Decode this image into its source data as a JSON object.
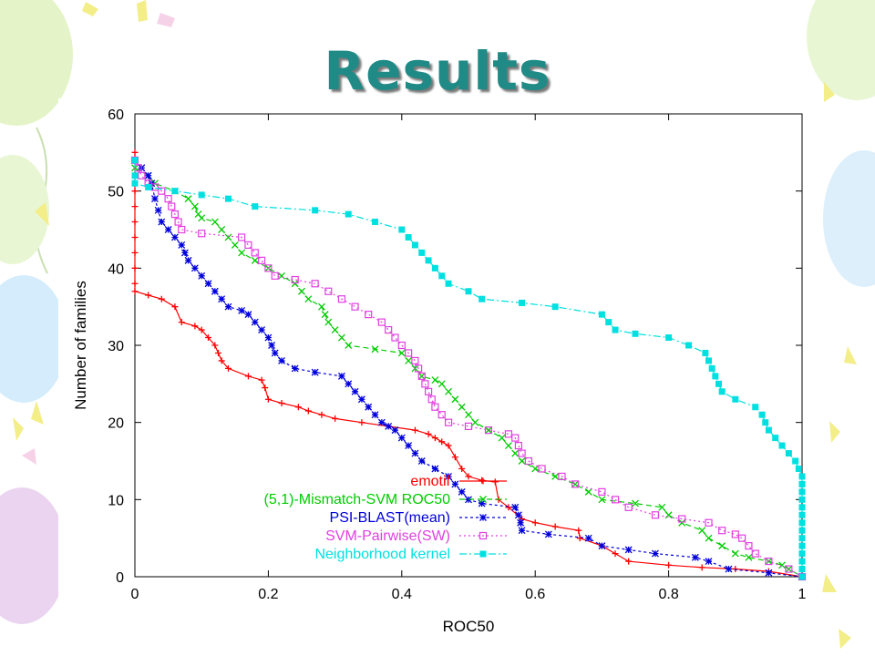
{
  "slide": {
    "title": "Results"
  },
  "colors": {
    "title": "#1f8a86",
    "balloon_green": "#dff2c0",
    "balloon_blue": "#d4ecfb",
    "balloon_purple": "#ead4f0",
    "confetti": "#f3ee88"
  },
  "chart_data": {
    "type": "line",
    "title": "",
    "xlabel": "ROC50",
    "ylabel": "Number of families",
    "xlim": [
      0,
      1
    ],
    "ylim": [
      0,
      60
    ],
    "xticks": [
      0,
      0.2,
      0.4,
      0.6,
      0.8,
      1
    ],
    "xtick_labels": [
      "0",
      "0.2",
      "0.4",
      "0.6",
      "0.8",
      "1"
    ],
    "yticks": [
      0,
      10,
      20,
      30,
      40,
      50,
      60
    ],
    "ytick_labels": [
      "0",
      "10",
      "20",
      "30",
      "40",
      "50",
      "60"
    ],
    "grid": false,
    "legend_position": "bottom-center",
    "series": [
      {
        "name": "emotif",
        "color": "#ff0000",
        "marker": "plus",
        "dash": "",
        "points": [
          [
            0,
            55
          ],
          [
            0,
            52
          ],
          [
            0,
            50
          ],
          [
            0,
            48
          ],
          [
            0,
            46
          ],
          [
            0,
            44
          ],
          [
            0,
            42
          ],
          [
            0,
            40
          ],
          [
            0,
            38
          ],
          [
            0,
            37
          ],
          [
            0.02,
            36.5
          ],
          [
            0.04,
            36
          ],
          [
            0.06,
            35
          ],
          [
            0.07,
            33
          ],
          [
            0.09,
            32.5
          ],
          [
            0.1,
            32
          ],
          [
            0.11,
            31
          ],
          [
            0.12,
            30
          ],
          [
            0.125,
            29
          ],
          [
            0.13,
            28
          ],
          [
            0.14,
            27
          ],
          [
            0.17,
            26
          ],
          [
            0.19,
            25.5
          ],
          [
            0.195,
            24.5
          ],
          [
            0.2,
            23
          ],
          [
            0.22,
            22.5
          ],
          [
            0.245,
            22
          ],
          [
            0.26,
            21.5
          ],
          [
            0.28,
            21
          ],
          [
            0.3,
            20.5
          ],
          [
            0.34,
            20
          ],
          [
            0.38,
            19.5
          ],
          [
            0.42,
            19
          ],
          [
            0.44,
            18.5
          ],
          [
            0.45,
            18
          ],
          [
            0.46,
            17.5
          ],
          [
            0.47,
            17
          ],
          [
            0.48,
            15.5
          ],
          [
            0.49,
            14
          ],
          [
            0.5,
            13
          ],
          [
            0.52,
            12.5
          ],
          [
            0.54,
            12.3
          ],
          [
            0.545,
            10
          ],
          [
            0.56,
            9
          ],
          [
            0.58,
            7.5
          ],
          [
            0.6,
            7
          ],
          [
            0.63,
            6.5
          ],
          [
            0.665,
            6
          ],
          [
            0.667,
            5
          ],
          [
            0.7,
            4
          ],
          [
            0.72,
            3
          ],
          [
            0.74,
            2
          ],
          [
            0.8,
            1.5
          ],
          [
            0.85,
            1.2
          ],
          [
            0.9,
            1
          ],
          [
            0.95,
            0.7
          ],
          [
            1,
            0
          ]
        ]
      },
      {
        "name": "(5,1)-Mismatch-SVM ROC50",
        "color": "#00cc00",
        "marker": "x",
        "dash": "6,4",
        "points": [
          [
            0,
            53
          ],
          [
            0.02,
            52
          ],
          [
            0.03,
            51
          ],
          [
            0.06,
            50
          ],
          [
            0.08,
            49
          ],
          [
            0.09,
            48
          ],
          [
            0.095,
            47
          ],
          [
            0.1,
            46.5
          ],
          [
            0.12,
            46
          ],
          [
            0.13,
            45
          ],
          [
            0.14,
            44
          ],
          [
            0.15,
            43
          ],
          [
            0.16,
            42
          ],
          [
            0.18,
            41
          ],
          [
            0.2,
            40
          ],
          [
            0.22,
            39
          ],
          [
            0.24,
            38
          ],
          [
            0.25,
            37
          ],
          [
            0.26,
            36
          ],
          [
            0.28,
            35
          ],
          [
            0.285,
            34
          ],
          [
            0.29,
            33
          ],
          [
            0.3,
            32
          ],
          [
            0.31,
            31
          ],
          [
            0.32,
            30
          ],
          [
            0.36,
            29.5
          ],
          [
            0.4,
            29
          ],
          [
            0.41,
            28
          ],
          [
            0.42,
            27
          ],
          [
            0.43,
            26
          ],
          [
            0.45,
            25.5
          ],
          [
            0.46,
            25
          ],
          [
            0.47,
            24
          ],
          [
            0.48,
            23
          ],
          [
            0.49,
            22
          ],
          [
            0.5,
            21
          ],
          [
            0.51,
            20
          ],
          [
            0.53,
            19
          ],
          [
            0.55,
            18
          ],
          [
            0.56,
            17
          ],
          [
            0.57,
            16
          ],
          [
            0.58,
            15
          ],
          [
            0.6,
            14
          ],
          [
            0.63,
            13
          ],
          [
            0.66,
            12
          ],
          [
            0.68,
            11
          ],
          [
            0.7,
            10
          ],
          [
            0.75,
            9.5
          ],
          [
            0.79,
            9
          ],
          [
            0.8,
            8
          ],
          [
            0.82,
            7
          ],
          [
            0.85,
            6
          ],
          [
            0.86,
            5
          ],
          [
            0.88,
            4
          ],
          [
            0.9,
            3
          ],
          [
            0.92,
            2.5
          ],
          [
            0.95,
            2
          ],
          [
            0.97,
            1.5
          ],
          [
            0.98,
            1
          ],
          [
            1,
            0
          ]
        ]
      },
      {
        "name": "PSI-BLAST(mean)",
        "color": "#0000dd",
        "marker": "star",
        "dash": "3,3",
        "points": [
          [
            0,
            54
          ],
          [
            0.01,
            53
          ],
          [
            0.02,
            52
          ],
          [
            0.025,
            51
          ],
          [
            0.03,
            49
          ],
          [
            0.035,
            47.5
          ],
          [
            0.04,
            46
          ],
          [
            0.05,
            45
          ],
          [
            0.06,
            44
          ],
          [
            0.07,
            43
          ],
          [
            0.075,
            42
          ],
          [
            0.08,
            41
          ],
          [
            0.09,
            40
          ],
          [
            0.1,
            39
          ],
          [
            0.11,
            38
          ],
          [
            0.12,
            37
          ],
          [
            0.13,
            36
          ],
          [
            0.14,
            35
          ],
          [
            0.16,
            34.5
          ],
          [
            0.17,
            34
          ],
          [
            0.18,
            33
          ],
          [
            0.19,
            32
          ],
          [
            0.2,
            31
          ],
          [
            0.205,
            30
          ],
          [
            0.21,
            29
          ],
          [
            0.22,
            28
          ],
          [
            0.24,
            27
          ],
          [
            0.27,
            26.5
          ],
          [
            0.31,
            26
          ],
          [
            0.32,
            25
          ],
          [
            0.33,
            24
          ],
          [
            0.34,
            23
          ],
          [
            0.35,
            22
          ],
          [
            0.36,
            21
          ],
          [
            0.37,
            20
          ],
          [
            0.38,
            19.5
          ],
          [
            0.39,
            19
          ],
          [
            0.4,
            18
          ],
          [
            0.41,
            17
          ],
          [
            0.42,
            16
          ],
          [
            0.43,
            15
          ],
          [
            0.45,
            14
          ],
          [
            0.47,
            13
          ],
          [
            0.48,
            12
          ],
          [
            0.49,
            11
          ],
          [
            0.5,
            10
          ],
          [
            0.52,
            9.5
          ],
          [
            0.57,
            9
          ],
          [
            0.575,
            8
          ],
          [
            0.578,
            7
          ],
          [
            0.58,
            6
          ],
          [
            0.62,
            5.5
          ],
          [
            0.68,
            5
          ],
          [
            0.7,
            4
          ],
          [
            0.74,
            3.5
          ],
          [
            0.78,
            3
          ],
          [
            0.84,
            2.5
          ],
          [
            0.86,
            2
          ],
          [
            0.89,
            1
          ],
          [
            0.95,
            0.5
          ],
          [
            1,
            0
          ]
        ]
      },
      {
        "name": "SVM-Pairwise(SW)",
        "color": "#e040e0",
        "marker": "square-open",
        "dash": "2,3",
        "points": [
          [
            0,
            54
          ],
          [
            0.005,
            53
          ],
          [
            0.01,
            52
          ],
          [
            0.02,
            51
          ],
          [
            0.03,
            50.5
          ],
          [
            0.04,
            50
          ],
          [
            0.05,
            49
          ],
          [
            0.055,
            48
          ],
          [
            0.06,
            47
          ],
          [
            0.065,
            46
          ],
          [
            0.07,
            45
          ],
          [
            0.1,
            44.5
          ],
          [
            0.16,
            44
          ],
          [
            0.17,
            43
          ],
          [
            0.18,
            42
          ],
          [
            0.19,
            41
          ],
          [
            0.2,
            40
          ],
          [
            0.21,
            39
          ],
          [
            0.24,
            38.5
          ],
          [
            0.27,
            38
          ],
          [
            0.29,
            37
          ],
          [
            0.31,
            36
          ],
          [
            0.33,
            35
          ],
          [
            0.35,
            34
          ],
          [
            0.37,
            33
          ],
          [
            0.38,
            32
          ],
          [
            0.39,
            31
          ],
          [
            0.4,
            30
          ],
          [
            0.41,
            29
          ],
          [
            0.42,
            28
          ],
          [
            0.425,
            27
          ],
          [
            0.43,
            26
          ],
          [
            0.435,
            25
          ],
          [
            0.44,
            24
          ],
          [
            0.445,
            23
          ],
          [
            0.45,
            22
          ],
          [
            0.46,
            21
          ],
          [
            0.47,
            20
          ],
          [
            0.5,
            19.5
          ],
          [
            0.53,
            19
          ],
          [
            0.56,
            18.5
          ],
          [
            0.57,
            18
          ],
          [
            0.575,
            17
          ],
          [
            0.58,
            16
          ],
          [
            0.59,
            15
          ],
          [
            0.61,
            14
          ],
          [
            0.64,
            13
          ],
          [
            0.66,
            12
          ],
          [
            0.7,
            11
          ],
          [
            0.72,
            10
          ],
          [
            0.74,
            9
          ],
          [
            0.78,
            8
          ],
          [
            0.82,
            7.5
          ],
          [
            0.86,
            7
          ],
          [
            0.88,
            6
          ],
          [
            0.9,
            5.5
          ],
          [
            0.91,
            5
          ],
          [
            0.92,
            4
          ],
          [
            0.93,
            3
          ],
          [
            0.95,
            2
          ],
          [
            0.98,
            1
          ],
          [
            1,
            0
          ]
        ]
      },
      {
        "name": "Neighborhood kernel",
        "color": "#00e0e0",
        "marker": "square-filled",
        "dash": "8,3,2,3",
        "points": [
          [
            0,
            54
          ],
          [
            0,
            52
          ],
          [
            0,
            51
          ],
          [
            0.02,
            50.5
          ],
          [
            0.06,
            50
          ],
          [
            0.1,
            49.5
          ],
          [
            0.14,
            49
          ],
          [
            0.18,
            48
          ],
          [
            0.27,
            47.5
          ],
          [
            0.32,
            47
          ],
          [
            0.36,
            46
          ],
          [
            0.4,
            45
          ],
          [
            0.41,
            44
          ],
          [
            0.42,
            43
          ],
          [
            0.43,
            42
          ],
          [
            0.44,
            41
          ],
          [
            0.45,
            40
          ],
          [
            0.46,
            39
          ],
          [
            0.47,
            38
          ],
          [
            0.5,
            37
          ],
          [
            0.52,
            36
          ],
          [
            0.58,
            35.5
          ],
          [
            0.63,
            35
          ],
          [
            0.7,
            34
          ],
          [
            0.71,
            33
          ],
          [
            0.72,
            32
          ],
          [
            0.75,
            31.5
          ],
          [
            0.8,
            31
          ],
          [
            0.83,
            30
          ],
          [
            0.855,
            29
          ],
          [
            0.86,
            28
          ],
          [
            0.865,
            27
          ],
          [
            0.87,
            26
          ],
          [
            0.875,
            25
          ],
          [
            0.88,
            24
          ],
          [
            0.9,
            23
          ],
          [
            0.93,
            22
          ],
          [
            0.94,
            21
          ],
          [
            0.945,
            20
          ],
          [
            0.95,
            19
          ],
          [
            0.96,
            18
          ],
          [
            0.97,
            17
          ],
          [
            0.98,
            16
          ],
          [
            0.99,
            15
          ],
          [
            0.995,
            14
          ],
          [
            1,
            13
          ],
          [
            1,
            12
          ],
          [
            1,
            11
          ],
          [
            1,
            10
          ],
          [
            1,
            9
          ],
          [
            1,
            8
          ],
          [
            1,
            7
          ],
          [
            1,
            6
          ],
          [
            1,
            5
          ],
          [
            1,
            4
          ],
          [
            1,
            3
          ],
          [
            1,
            2
          ],
          [
            1,
            1
          ],
          [
            1,
            0
          ]
        ]
      }
    ]
  }
}
